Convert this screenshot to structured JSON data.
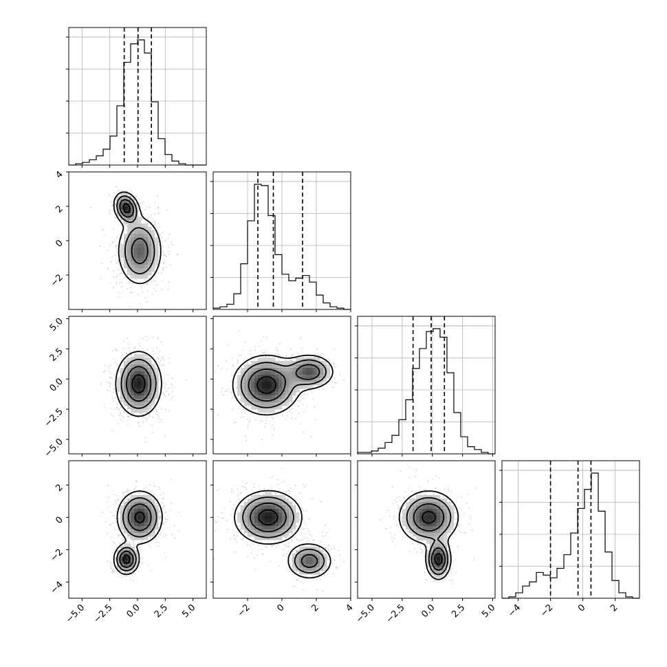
{
  "chart_data": {
    "type": "corner",
    "dims": 4,
    "grid": true,
    "colors": {
      "hist": "#000000",
      "grid": "#b0b0b0",
      "contour": "#000000",
      "scatter": "#bdbdbd",
      "density_dark": "#1e1e1e"
    },
    "axes": [
      {
        "range": [
          -6.2,
          6.2
        ],
        "ticks": [
          -5.0,
          -2.5,
          0.0,
          2.5,
          5.0
        ],
        "tick_labels": [
          "−5.0",
          "−2.5",
          "0.0",
          "2.5",
          "5.0"
        ]
      },
      {
        "range": [
          -4.0,
          4.0
        ],
        "ticks": [
          -2,
          0,
          2,
          4
        ],
        "tick_labels": [
          "−2",
          "0",
          "2",
          "4"
        ]
      },
      {
        "range": [
          -6.2,
          5.2
        ],
        "ticks": [
          -5.0,
          -2.5,
          0.0,
          2.5,
          5.0
        ],
        "tick_labels": [
          "−5.0",
          "−2.5",
          "0.0",
          "2.5",
          "5.0"
        ]
      },
      {
        "range": [
          -5.0,
          3.5
        ],
        "ticks": [
          -4,
          -2,
          0,
          2
        ],
        "tick_labels": [
          "−4",
          "−2",
          "0",
          "2"
        ]
      }
    ],
    "quantiles": [
      [
        -1.2,
        0.05,
        1.25
      ],
      [
        -1.4,
        -0.5,
        1.2
      ],
      [
        -1.6,
        -0.1,
        1.0
      ],
      [
        -2.0,
        -0.3,
        0.5
      ]
    ],
    "histograms": [
      {
        "values": [
          0,
          1,
          2,
          4,
          7,
          12,
          22,
          45,
          78,
          92,
          95,
          85,
          48,
          20,
          8,
          3,
          1,
          0,
          0,
          0
        ]
      },
      {
        "values": [
          1,
          2,
          4,
          12,
          35,
          68,
          96,
          95,
          72,
          42,
          27,
          22,
          24,
          26,
          21,
          11,
          5,
          2,
          1,
          0
        ]
      },
      {
        "values": [
          1,
          1,
          2,
          4,
          8,
          13,
          24,
          38,
          60,
          74,
          86,
          88,
          82,
          57,
          29,
          12,
          5,
          3,
          1,
          0
        ]
      },
      {
        "values": [
          0,
          1,
          4,
          9,
          12,
          19,
          17,
          15,
          22,
          32,
          48,
          66,
          80,
          92,
          64,
          34,
          13,
          4,
          1,
          0
        ]
      }
    ],
    "pairs": [
      {
        "row": 1,
        "col": 0,
        "components": [
          {
            "weight": 0.75,
            "mx": 0.2,
            "my": -0.6,
            "sx": 1.0,
            "sy": 1.0,
            "rho": 0.0
          },
          {
            "weight": 0.25,
            "mx": -1.0,
            "my": 1.9,
            "sx": 0.55,
            "sy": 0.45,
            "rho": -0.2
          }
        ]
      },
      {
        "row": 2,
        "col": 0,
        "components": [
          {
            "weight": 1.0,
            "mx": 0.1,
            "my": -0.4,
            "sx": 1.0,
            "sy": 1.3,
            "rho": 0.0
          }
        ]
      },
      {
        "row": 2,
        "col": 1,
        "components": [
          {
            "weight": 0.75,
            "mx": -0.9,
            "my": -0.5,
            "sx": 0.95,
            "sy": 1.2,
            "rho": 0.0
          },
          {
            "weight": 0.25,
            "mx": 1.6,
            "my": 0.6,
            "sx": 0.7,
            "sy": 0.7,
            "rho": 0.0
          }
        ]
      },
      {
        "row": 3,
        "col": 0,
        "components": [
          {
            "weight": 0.75,
            "mx": 0.2,
            "my": 0.0,
            "sx": 1.0,
            "sy": 0.8,
            "rho": 0.0
          },
          {
            "weight": 0.25,
            "mx": -1.0,
            "my": -2.6,
            "sx": 0.55,
            "sy": 0.45,
            "rho": 0.0
          }
        ]
      },
      {
        "row": 3,
        "col": 1,
        "components": [
          {
            "weight": 0.75,
            "mx": -0.8,
            "my": 0.0,
            "sx": 0.95,
            "sy": 0.8,
            "rho": 0.0
          },
          {
            "weight": 0.25,
            "mx": 1.6,
            "my": -2.7,
            "sx": 0.65,
            "sy": 0.55,
            "rho": 0.0
          }
        ]
      },
      {
        "row": 3,
        "col": 2,
        "components": [
          {
            "weight": 0.75,
            "mx": -0.3,
            "my": 0.0,
            "sx": 1.2,
            "sy": 0.8,
            "rho": 0.0
          },
          {
            "weight": 0.25,
            "mx": 0.5,
            "my": -2.6,
            "sx": 0.5,
            "sy": 0.6,
            "rho": 0.0
          }
        ]
      }
    ]
  }
}
